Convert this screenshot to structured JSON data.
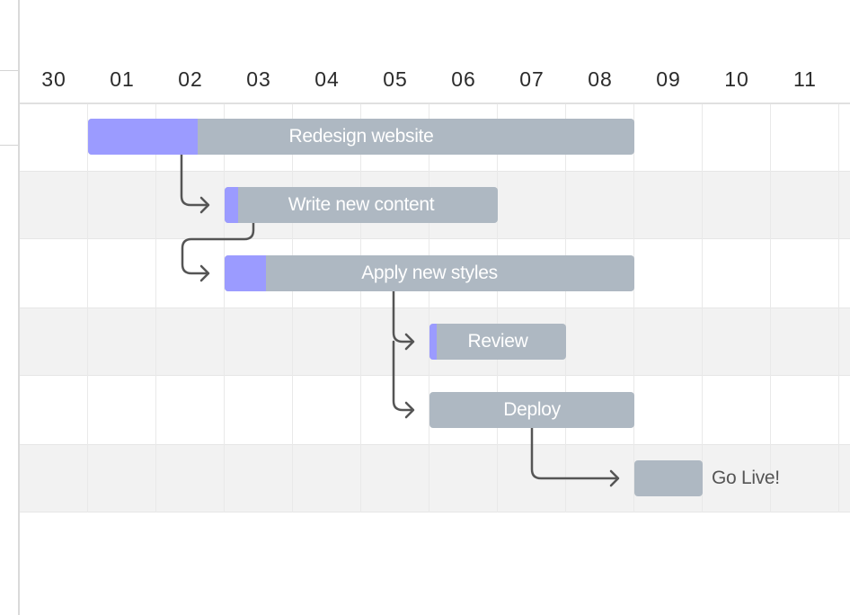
{
  "timeline": {
    "dates": [
      "30",
      "01",
      "02",
      "03",
      "04",
      "05",
      "06",
      "07",
      "08",
      "09",
      "10",
      "11"
    ]
  },
  "tasks": [
    {
      "name": "Redesign website",
      "progress": 0.2
    },
    {
      "name": "Write new content",
      "progress": 0.05
    },
    {
      "name": "Apply new styles",
      "progress": 0.1
    },
    {
      "name": "Review",
      "progress": 0.05
    },
    {
      "name": "Deploy",
      "progress": 0.0
    },
    {
      "name": "Go Live!",
      "progress": 0.0
    }
  ],
  "colors": {
    "bar": "#aeb8c2",
    "progress": "#9b9bff",
    "arrow": "#555555"
  }
}
